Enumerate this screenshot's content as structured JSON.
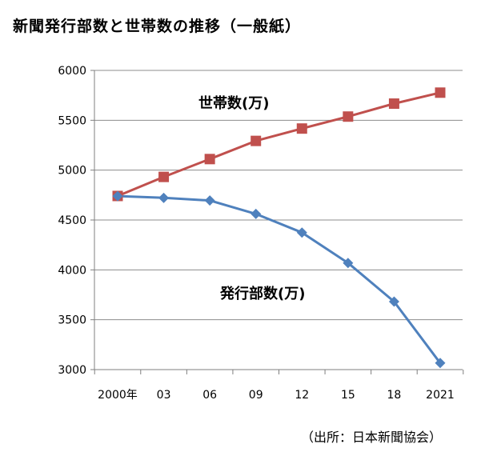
{
  "title": "新聞発行部数と世帯数の推移（一般紙）",
  "source": "（出所：日本新聞協会）",
  "colors": {
    "households": "#C0504D",
    "circulation": "#4F81BD",
    "grid": "#8C8C8C",
    "axis": "#7F7F7F"
  },
  "chart_data": {
    "type": "line",
    "title": "新聞発行部数と世帯数の推移（一般紙）",
    "x_tick_labels": [
      "2000年",
      "03",
      "06",
      "09",
      "12",
      "15",
      "18",
      "2021"
    ],
    "x": [
      2000,
      2003,
      2006,
      2009,
      2012,
      2015,
      2018,
      2021
    ],
    "ylim": [
      3000,
      6000
    ],
    "yticks": [
      3000,
      3500,
      4000,
      4500,
      5000,
      5500,
      6000
    ],
    "grid": true,
    "series": [
      {
        "name": "世帯数(万)",
        "marker": "square",
        "color": "#C0504D",
        "values": [
          4741,
          4932,
          5111,
          5293,
          5417,
          5537,
          5667,
          5777
        ]
      },
      {
        "name": "発行部数(万)",
        "marker": "diamond",
        "color": "#4F81BD",
        "values": [
          4740,
          4722,
          4696,
          4561,
          4374,
          4069,
          3682,
          3066
        ]
      }
    ]
  }
}
